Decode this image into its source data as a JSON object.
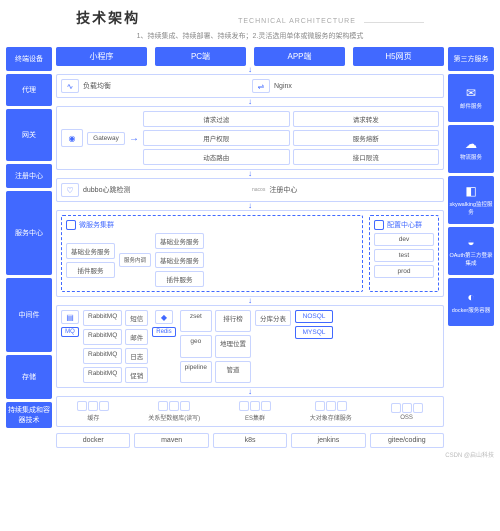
{
  "header": {
    "title": "技术架构",
    "title_en": "TECHNICAL ARCHITECTURE",
    "subtitle": "1、持续集成、持续部署、持续发布；2.灵活选用单体或微服务的架构模式"
  },
  "colors": {
    "primary": "#4169ff",
    "border": "#c8d4ff",
    "text": "#555",
    "muted": "#888",
    "bg": "#ffffff"
  },
  "left_labels": [
    "终端设备",
    "代理",
    "网关",
    "注册中心",
    "服务中心",
    "中间件",
    "存储",
    "持续集成和容器技术"
  ],
  "left_heights": [
    24,
    32,
    52,
    24,
    84,
    74,
    44,
    26
  ],
  "clients": [
    "小程序",
    "PC端",
    "APP端",
    "H5网页"
  ],
  "right": {
    "title": "第三方服务",
    "items": [
      {
        "icon": "✉",
        "label": "邮件服务"
      },
      {
        "icon": "☁",
        "label": "物流服务"
      },
      {
        "icon": "◧",
        "label": "skywalking监控服务"
      },
      {
        "icon": "◒",
        "label": "OAuth第三方登录集成"
      },
      {
        "icon": "◐",
        "label": "docker服务容器"
      }
    ]
  },
  "proxy": {
    "lb": "负载均衡",
    "nginx": "Nginx"
  },
  "gateway": {
    "name": "Gateway",
    "cells": [
      "请求过滤",
      "请求转发",
      "用户权限",
      "服务熔断",
      "动态路由",
      "接口限流"
    ]
  },
  "registry": {
    "dubbo": "dubbo心跳检测",
    "nacos": "注册中心",
    "nacos_icon": "nacos"
  },
  "service": {
    "cluster_title": "微服务集群",
    "left_stack": [
      "基础业务服务",
      "插件服务"
    ],
    "mid_label": "服务内调",
    "right_stack": [
      "基础业务服务",
      "基础业务服务",
      "插件服务"
    ],
    "config_title": "配置中心群",
    "envs": [
      "dev",
      "test",
      "prod"
    ]
  },
  "middleware": {
    "mq_title": "MQ",
    "mq_rows": [
      [
        "RabbitMQ",
        "短信"
      ],
      [
        "RabbitMQ",
        "邮件"
      ],
      [
        "RabbitMQ",
        "日志"
      ],
      [
        "RabbitMQ",
        "促销"
      ]
    ],
    "redis": "Redis",
    "redis_rows": [
      [
        "zset",
        "排行榜"
      ],
      [
        "geo",
        "地理位置"
      ],
      [
        "pipeline",
        "管道"
      ]
    ],
    "db_split": "分库分表",
    "db": [
      "NOSQL",
      "MYSQL"
    ]
  },
  "storage": {
    "items": [
      {
        "label": "缓存"
      },
      {
        "label": "关系型数据库(读写)"
      },
      {
        "label": "ES集群"
      },
      {
        "label": "大对象存储服务"
      },
      {
        "label": "OSS"
      }
    ]
  },
  "ci": [
    "docker",
    "maven",
    "k8s",
    "jenkins",
    "gitee/coding"
  ],
  "watermark": "CSDN @启山科技"
}
